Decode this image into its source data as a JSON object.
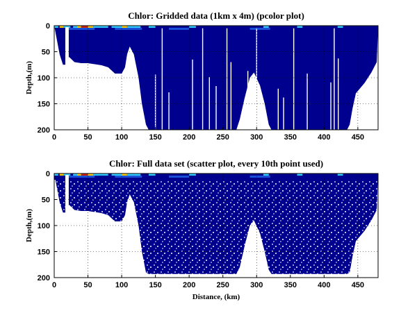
{
  "chart_data": [
    {
      "type": "heatmap",
      "title": "Chlor: Gridded data (1km x 4m) (pcolor plot)",
      "xlabel": "",
      "ylabel": "Depth,(m)",
      "xlim": [
        0,
        480
      ],
      "ylim": [
        200,
        0
      ],
      "x_ticks": [
        0,
        50,
        100,
        150,
        200,
        250,
        300,
        350,
        400,
        450
      ],
      "y_ticks": [
        0,
        50,
        100,
        150,
        200
      ],
      "grid": true,
      "colors": {
        "background": "#00008f",
        "surface_high": "#cc2200",
        "surface_mid": "#ffcc00",
        "surface_low": "#33ccff"
      },
      "bottom_profile": {
        "distance_km": [
          0,
          8,
          13,
          18,
          22,
          30,
          40,
          50,
          60,
          70,
          80,
          90,
          100,
          105,
          108,
          112,
          118,
          125,
          130,
          136,
          140,
          142,
          270,
          275,
          282,
          290,
          296,
          305,
          312,
          318,
          322,
          326,
          434,
          438,
          442,
          447,
          460,
          470,
          478,
          480
        ],
        "depth_m": [
          0,
          55,
          75,
          75,
          60,
          70,
          72,
          72,
          74,
          76,
          80,
          92,
          92,
          80,
          55,
          40,
          55,
          100,
          150,
          190,
          200,
          200,
          200,
          180,
          140,
          100,
          90,
          115,
          150,
          190,
          200,
          200,
          200,
          190,
          160,
          130,
          110,
          90,
          70,
          0
        ]
      },
      "vertical_gaps_km": [
        18,
        20,
        150,
        160,
        170,
        205,
        220,
        230,
        240,
        256,
        262,
        287,
        300,
        332,
        340,
        355,
        375,
        410,
        415,
        421
      ]
    },
    {
      "type": "scatter",
      "title": "Chlor: Full data set (scatter plot, every 10th point used)",
      "xlabel": "Distance, (km)",
      "ylabel": "Depth,(m)",
      "xlim": [
        0,
        480
      ],
      "ylim": [
        200,
        0
      ],
      "x_ticks": [
        0,
        50,
        100,
        150,
        200,
        250,
        300,
        350,
        400,
        450
      ],
      "y_ticks": [
        0,
        50,
        100,
        150,
        200
      ],
      "grid": true,
      "colors": {
        "background": "#00008f",
        "surface_high": "#cc2200",
        "surface_mid": "#ffcc00",
        "surface_low": "#33ccff"
      },
      "bottom_profile": {
        "distance_km": [
          0,
          8,
          13,
          18,
          22,
          30,
          40,
          50,
          60,
          70,
          80,
          90,
          100,
          105,
          108,
          112,
          118,
          125,
          130,
          136,
          140,
          142,
          270,
          275,
          282,
          290,
          296,
          305,
          312,
          318,
          322,
          326,
          434,
          438,
          442,
          447,
          460,
          470,
          478,
          480
        ],
        "depth_m": [
          0,
          55,
          75,
          75,
          60,
          70,
          72,
          72,
          74,
          76,
          80,
          92,
          92,
          80,
          55,
          40,
          55,
          100,
          150,
          190,
          193,
          193,
          193,
          180,
          140,
          100,
          90,
          115,
          150,
          185,
          193,
          193,
          193,
          190,
          160,
          130,
          110,
          90,
          70,
          0
        ]
      },
      "vertical_gaps_km": [
        18,
        20
      ]
    }
  ]
}
